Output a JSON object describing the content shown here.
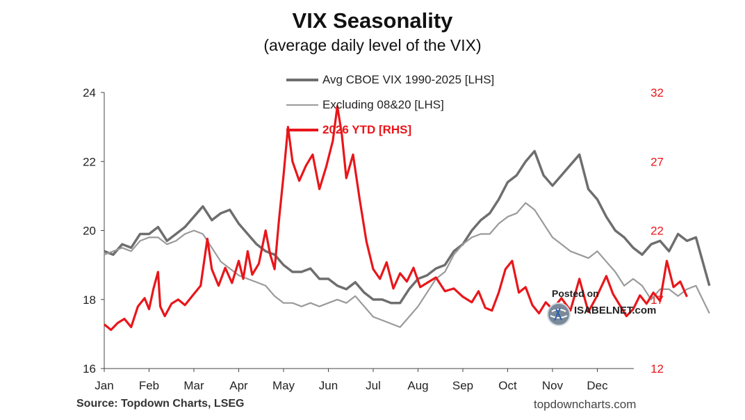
{
  "chart_data": {
    "type": "line",
    "title": "VIX Seasonality",
    "subtitle": "(average daily level of the VIX)",
    "x_ticks": [
      "Jan",
      "Feb",
      "Mar",
      "Apr",
      "May",
      "Jun",
      "Jul",
      "Aug",
      "Sep",
      "Oct",
      "Nov",
      "Dec"
    ],
    "y_left": {
      "ticks": [
        "16",
        "18",
        "20",
        "22",
        "24"
      ],
      "range": [
        16,
        24
      ]
    },
    "y_right": {
      "ticks": [
        "12",
        "17",
        "22",
        "27",
        "32"
      ],
      "range": [
        12,
        32
      ]
    },
    "legend_placement": "top-center",
    "grid": false,
    "series": [
      {
        "name": "Avg CBOE VIX 1990-2025 [LHS]",
        "axis": "left",
        "color": "#6e6e6e",
        "points": [
          [
            0.0,
            19.4
          ],
          [
            0.2,
            19.3
          ],
          [
            0.4,
            19.6
          ],
          [
            0.6,
            19.5
          ],
          [
            0.8,
            19.9
          ],
          [
            1.0,
            19.9
          ],
          [
            1.2,
            20.1
          ],
          [
            1.4,
            19.7
          ],
          [
            1.6,
            19.9
          ],
          [
            1.8,
            20.1
          ],
          [
            2.0,
            20.4
          ],
          [
            2.2,
            20.7
          ],
          [
            2.4,
            20.3
          ],
          [
            2.6,
            20.5
          ],
          [
            2.8,
            20.6
          ],
          [
            3.0,
            20.2
          ],
          [
            3.2,
            19.9
          ],
          [
            3.4,
            19.6
          ],
          [
            3.6,
            19.4
          ],
          [
            3.8,
            19.3
          ],
          [
            4.0,
            19.0
          ],
          [
            4.2,
            18.8
          ],
          [
            4.4,
            18.8
          ],
          [
            4.6,
            18.9
          ],
          [
            4.8,
            18.6
          ],
          [
            5.0,
            18.6
          ],
          [
            5.2,
            18.4
          ],
          [
            5.4,
            18.3
          ],
          [
            5.6,
            18.5
          ],
          [
            5.8,
            18.2
          ],
          [
            6.0,
            18.0
          ],
          [
            6.2,
            18.0
          ],
          [
            6.4,
            17.9
          ],
          [
            6.6,
            17.9
          ],
          [
            6.8,
            18.3
          ],
          [
            7.0,
            18.6
          ],
          [
            7.2,
            18.7
          ],
          [
            7.4,
            18.9
          ],
          [
            7.6,
            19.0
          ],
          [
            7.8,
            19.4
          ],
          [
            8.0,
            19.6
          ],
          [
            8.2,
            20.0
          ],
          [
            8.4,
            20.3
          ],
          [
            8.6,
            20.5
          ],
          [
            8.8,
            20.9
          ],
          [
            9.0,
            21.4
          ],
          [
            9.2,
            21.6
          ],
          [
            9.4,
            22.0
          ],
          [
            9.6,
            22.3
          ],
          [
            9.8,
            21.6
          ],
          [
            10.0,
            21.3
          ],
          [
            10.2,
            21.6
          ],
          [
            10.4,
            21.9
          ],
          [
            10.6,
            22.2
          ],
          [
            10.8,
            21.2
          ],
          [
            11.0,
            20.9
          ],
          [
            11.2,
            20.4
          ],
          [
            11.4,
            20.0
          ],
          [
            11.6,
            19.8
          ],
          [
            11.8,
            19.5
          ],
          [
            12.0,
            19.3
          ],
          [
            12.2,
            19.6
          ],
          [
            12.4,
            19.7
          ],
          [
            12.6,
            19.4
          ],
          [
            12.8,
            19.9
          ],
          [
            13.0,
            19.7
          ],
          [
            13.2,
            19.8
          ],
          [
            13.5,
            18.4
          ]
        ]
      },
      {
        "name": "Excluding 08&20 [LHS]",
        "axis": "left",
        "color": "#9a9a9a",
        "points": [
          [
            0.0,
            19.3
          ],
          [
            0.2,
            19.4
          ],
          [
            0.4,
            19.5
          ],
          [
            0.6,
            19.4
          ],
          [
            0.8,
            19.7
          ],
          [
            1.0,
            19.8
          ],
          [
            1.2,
            19.8
          ],
          [
            1.4,
            19.6
          ],
          [
            1.6,
            19.7
          ],
          [
            1.8,
            19.9
          ],
          [
            2.0,
            20.0
          ],
          [
            2.2,
            19.9
          ],
          [
            2.4,
            19.5
          ],
          [
            2.6,
            19.1
          ],
          [
            2.8,
            18.9
          ],
          [
            3.0,
            18.7
          ],
          [
            3.2,
            18.6
          ],
          [
            3.4,
            18.5
          ],
          [
            3.6,
            18.4
          ],
          [
            3.8,
            18.1
          ],
          [
            4.0,
            17.9
          ],
          [
            4.2,
            17.9
          ],
          [
            4.4,
            17.8
          ],
          [
            4.6,
            17.9
          ],
          [
            4.8,
            17.8
          ],
          [
            5.0,
            17.9
          ],
          [
            5.2,
            18.0
          ],
          [
            5.4,
            17.9
          ],
          [
            5.6,
            18.1
          ],
          [
            5.8,
            17.8
          ],
          [
            6.0,
            17.5
          ],
          [
            6.2,
            17.4
          ],
          [
            6.4,
            17.3
          ],
          [
            6.6,
            17.2
          ],
          [
            6.8,
            17.5
          ],
          [
            7.0,
            17.8
          ],
          [
            7.2,
            18.2
          ],
          [
            7.4,
            18.6
          ],
          [
            7.6,
            18.8
          ],
          [
            7.8,
            19.3
          ],
          [
            8.0,
            19.6
          ],
          [
            8.2,
            19.8
          ],
          [
            8.4,
            19.9
          ],
          [
            8.6,
            19.9
          ],
          [
            8.8,
            20.2
          ],
          [
            9.0,
            20.4
          ],
          [
            9.2,
            20.5
          ],
          [
            9.4,
            20.8
          ],
          [
            9.6,
            20.6
          ],
          [
            9.8,
            20.2
          ],
          [
            10.0,
            19.8
          ],
          [
            10.2,
            19.6
          ],
          [
            10.4,
            19.4
          ],
          [
            10.6,
            19.3
          ],
          [
            10.8,
            19.2
          ],
          [
            11.0,
            19.4
          ],
          [
            11.2,
            19.1
          ],
          [
            11.4,
            18.8
          ],
          [
            11.6,
            18.4
          ],
          [
            11.8,
            18.6
          ],
          [
            12.0,
            18.4
          ],
          [
            12.2,
            18.0
          ],
          [
            12.4,
            18.3
          ],
          [
            12.6,
            18.3
          ],
          [
            12.8,
            18.1
          ],
          [
            13.0,
            18.3
          ],
          [
            13.2,
            18.4
          ],
          [
            13.5,
            17.6
          ]
        ]
      },
      {
        "name": "2026 YTD [RHS]",
        "axis": "right",
        "color": "#e8161a",
        "points": [
          [
            0.0,
            15.2
          ],
          [
            0.15,
            14.8
          ],
          [
            0.3,
            15.3
          ],
          [
            0.45,
            15.6
          ],
          [
            0.6,
            15.0
          ],
          [
            0.75,
            16.5
          ],
          [
            0.9,
            17.1
          ],
          [
            1.0,
            16.3
          ],
          [
            1.1,
            17.8
          ],
          [
            1.2,
            19.0
          ],
          [
            1.25,
            16.5
          ],
          [
            1.35,
            15.8
          ],
          [
            1.5,
            16.7
          ],
          [
            1.65,
            17.0
          ],
          [
            1.8,
            16.6
          ],
          [
            2.0,
            17.4
          ],
          [
            2.15,
            18.0
          ],
          [
            2.3,
            21.4
          ],
          [
            2.4,
            19.2
          ],
          [
            2.55,
            18.0
          ],
          [
            2.7,
            19.3
          ],
          [
            2.85,
            18.2
          ],
          [
            3.0,
            19.8
          ],
          [
            3.1,
            18.5
          ],
          [
            3.2,
            20.5
          ],
          [
            3.3,
            18.8
          ],
          [
            3.45,
            19.6
          ],
          [
            3.6,
            22.0
          ],
          [
            3.7,
            20.3
          ],
          [
            3.8,
            19.2
          ],
          [
            3.9,
            22.8
          ],
          [
            4.0,
            26.0
          ],
          [
            4.1,
            29.5
          ],
          [
            4.2,
            27.0
          ],
          [
            4.35,
            25.6
          ],
          [
            4.5,
            26.7
          ],
          [
            4.65,
            27.5
          ],
          [
            4.8,
            25.0
          ],
          [
            4.95,
            26.6
          ],
          [
            5.1,
            28.5
          ],
          [
            5.2,
            31.0
          ],
          [
            5.3,
            29.0
          ],
          [
            5.4,
            25.8
          ],
          [
            5.55,
            27.5
          ],
          [
            5.7,
            24.2
          ],
          [
            5.85,
            21.2
          ],
          [
            6.0,
            19.2
          ],
          [
            6.15,
            18.5
          ],
          [
            6.3,
            19.7
          ],
          [
            6.45,
            17.8
          ],
          [
            6.6,
            18.9
          ],
          [
            6.75,
            18.3
          ],
          [
            6.9,
            19.3
          ],
          [
            7.05,
            17.9
          ],
          [
            7.2,
            18.2
          ],
          [
            7.4,
            18.6
          ],
          [
            7.6,
            17.6
          ],
          [
            7.8,
            17.8
          ],
          [
            8.0,
            17.2
          ],
          [
            8.2,
            16.8
          ],
          [
            8.35,
            17.6
          ],
          [
            8.5,
            16.4
          ],
          [
            8.65,
            16.2
          ],
          [
            8.8,
            17.5
          ],
          [
            8.95,
            19.2
          ],
          [
            9.1,
            19.8
          ],
          [
            9.25,
            17.5
          ],
          [
            9.4,
            17.9
          ],
          [
            9.55,
            16.6
          ],
          [
            9.7,
            16.0
          ],
          [
            9.85,
            16.8
          ],
          [
            10.0,
            16.3
          ],
          [
            10.2,
            17.1
          ],
          [
            10.4,
            16.2
          ],
          [
            10.6,
            18.5
          ],
          [
            10.8,
            16.1
          ],
          [
            11.0,
            17.3
          ],
          [
            11.2,
            18.7
          ],
          [
            11.35,
            17.4
          ],
          [
            11.5,
            16.6
          ],
          [
            11.65,
            15.8
          ],
          [
            11.8,
            16.3
          ],
          [
            11.95,
            17.3
          ],
          [
            12.1,
            16.7
          ],
          [
            12.25,
            17.5
          ],
          [
            12.4,
            16.9
          ],
          [
            12.55,
            19.8
          ],
          [
            12.7,
            17.9
          ],
          [
            12.85,
            18.3
          ],
          [
            13.0,
            17.2
          ]
        ]
      }
    ]
  },
  "source_label": "Source: Topdown Charts, LSEG",
  "credit_label": "topdowncharts.com",
  "watermark": {
    "posted": "Posted on",
    "brand": "ISABELNET.com"
  }
}
